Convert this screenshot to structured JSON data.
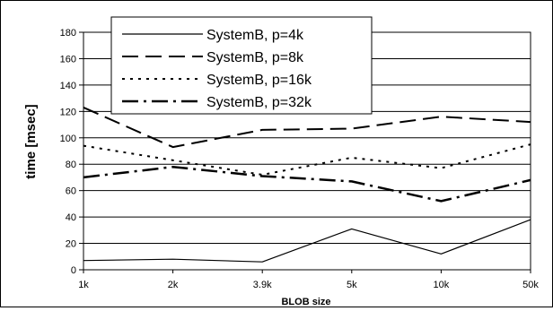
{
  "chart_data": {
    "type": "line",
    "title": "",
    "xlabel": "BLOB size",
    "ylabel": "time [msec]",
    "categories": [
      "1k",
      "2k",
      "3.9k",
      "5k",
      "10k",
      "50k"
    ],
    "ylim": [
      0,
      180
    ],
    "yticks": [
      "0",
      "20",
      "40",
      "60",
      "80",
      "100",
      "120",
      "140",
      "160",
      "180"
    ],
    "grid": true,
    "legend_position": "top",
    "series": [
      {
        "name": "SystemB, p=4k",
        "values": [
          7,
          8,
          6,
          31,
          12,
          38
        ],
        "style": "solid"
      },
      {
        "name": "SystemB, p=8k",
        "values": [
          123,
          93,
          106,
          107,
          116,
          112
        ],
        "style": "long-dash"
      },
      {
        "name": "SystemB, p=16k",
        "values": [
          94,
          83,
          72,
          85,
          77,
          95
        ],
        "style": "dotted"
      },
      {
        "name": "SystemB, p=32k",
        "values": [
          70,
          78,
          71,
          67,
          52,
          68
        ],
        "style": "dash-dot"
      }
    ],
    "colors": {
      "line": "#000000",
      "grid": "#000000",
      "background": "#ffffff"
    }
  }
}
